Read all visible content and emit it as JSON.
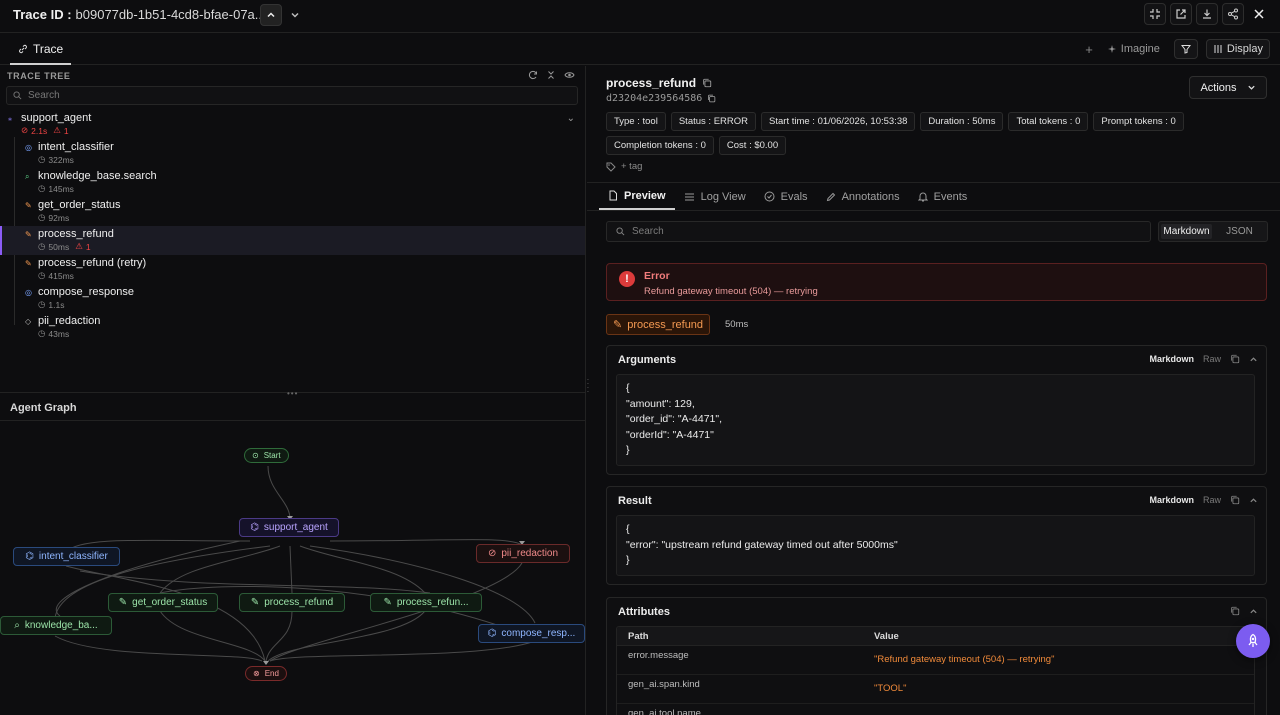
{
  "topbar": {
    "trace_id_label": "Trace ID :",
    "trace_id_value": "b09077db-1b51-4cd8-bfae-07a..."
  },
  "tabs": {
    "trace_label": "Trace",
    "imagine_label": "Imagine",
    "display_label": "Display"
  },
  "trace_tree": {
    "header": "TRACE TREE",
    "search_placeholder": "Search",
    "root": {
      "name": "support_agent",
      "errors_duration": "2.1s",
      "error_count": "1"
    },
    "nodes": [
      {
        "name": "intent_classifier",
        "duration": "322ms",
        "icon": "brain-icon"
      },
      {
        "name": "knowledge_base.search",
        "duration": "145ms",
        "icon": "search-icon"
      },
      {
        "name": "get_order_status",
        "duration": "92ms",
        "icon": "wrench-icon"
      },
      {
        "name": "process_refund",
        "duration": "50ms",
        "error_count": "1",
        "icon": "wrench-icon",
        "selected": true
      },
      {
        "name": "process_refund (retry)",
        "duration": "415ms",
        "icon": "wrench-icon"
      },
      {
        "name": "compose_response",
        "duration": "1.1s",
        "icon": "brain-icon"
      },
      {
        "name": "pii_redaction",
        "duration": "43ms",
        "icon": "shield-icon"
      }
    ]
  },
  "agent_graph": {
    "title": "Agent Graph",
    "start": "Start",
    "end": "End",
    "agent": "support_agent",
    "nodes": {
      "intent_classifier": "intent_classifier",
      "pii_redaction": "pii_redaction",
      "get_order_status": "get_order_status",
      "process_refund": "process_refund",
      "process_refund_retry": "process_refun...",
      "knowledge_base": "knowledge_ba...",
      "compose_response": "compose_resp..."
    }
  },
  "span": {
    "title": "process_refund",
    "id": "d23204e239564586",
    "actions_label": "Actions",
    "chips": [
      "Type : tool",
      "Status : ERROR",
      "Start time : 01/06/2026, 10:53:38",
      "Duration : 50ms",
      "Total tokens : 0",
      "Prompt tokens : 0",
      "Completion tokens : 0",
      "Cost : $0.00"
    ],
    "add_tag": "+ tag"
  },
  "detail_tabs": [
    "Preview",
    "Log View",
    "Evals",
    "Annotations",
    "Events"
  ],
  "preview": {
    "search_placeholder": "Search",
    "format_markdown": "Markdown",
    "format_json": "JSON",
    "error_title": "Error",
    "error_message": "Refund gateway timeout (504) — retrying",
    "tool_name": "process_refund",
    "tool_duration": "50ms",
    "arguments_title": "Arguments",
    "arguments_body": "{\n\"amount\": 129,\n\"order_id\": \"A-4471\",\n\"orderId\": \"A-4471\"\n}",
    "result_title": "Result",
    "result_body": "{\n\"error\": \"upstream refund gateway timed out after 5000ms\"\n}",
    "markdown_label": "Markdown",
    "raw_label": "Raw",
    "attributes_title": "Attributes",
    "attr_path_header": "Path",
    "attr_value_header": "Value",
    "attributes": [
      {
        "path": "error.message",
        "value": "\"Refund gateway timeout (504) — retrying\""
      },
      {
        "path": "gen_ai.span.kind",
        "value": "\"TOOL\""
      },
      {
        "path": "gen_ai.tool.name",
        "value": ""
      }
    ]
  },
  "colors": {
    "accent": "#8b5cf6",
    "error": "#ef4444",
    "tool_orange": "#f59a52"
  }
}
